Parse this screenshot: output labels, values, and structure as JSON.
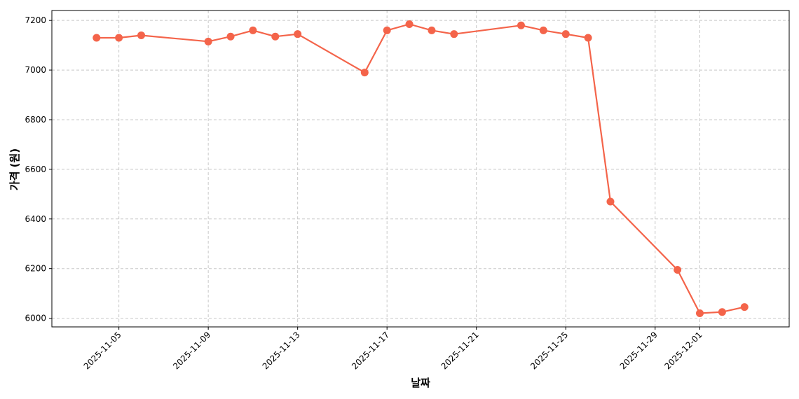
{
  "chart_data": {
    "type": "line",
    "xlabel": "날짜",
    "ylabel": "가격 (원)",
    "xlim": [
      "2025-11-02",
      "2025-12-05"
    ],
    "ylim": [
      5965,
      7240
    ],
    "x_ticks": [
      "2025-11-05",
      "2025-11-09",
      "2025-11-13",
      "2025-11-17",
      "2025-11-21",
      "2025-11-25",
      "2025-11-29",
      "2025-12-01"
    ],
    "y_ticks": [
      6000,
      6200,
      6400,
      6600,
      6800,
      7000,
      7200
    ],
    "grid": true,
    "grid_style": "dashed",
    "series": [
      {
        "color": "#f4644a",
        "marker": "circle",
        "points": [
          {
            "x": "2025-11-04",
            "y": 7130
          },
          {
            "x": "2025-11-05",
            "y": 7130
          },
          {
            "x": "2025-11-06",
            "y": 7140
          },
          {
            "x": "2025-11-09",
            "y": 7115
          },
          {
            "x": "2025-11-10",
            "y": 7135
          },
          {
            "x": "2025-11-11",
            "y": 7160
          },
          {
            "x": "2025-11-12",
            "y": 7135
          },
          {
            "x": "2025-11-13",
            "y": 7145
          },
          {
            "x": "2025-11-16",
            "y": 6990
          },
          {
            "x": "2025-11-17",
            "y": 7160
          },
          {
            "x": "2025-11-18",
            "y": 7185
          },
          {
            "x": "2025-11-19",
            "y": 7160
          },
          {
            "x": "2025-11-20",
            "y": 7145
          },
          {
            "x": "2025-11-23",
            "y": 7180
          },
          {
            "x": "2025-11-24",
            "y": 7160
          },
          {
            "x": "2025-11-25",
            "y": 7145
          },
          {
            "x": "2025-11-26",
            "y": 7130
          },
          {
            "x": "2025-11-27",
            "y": 6470
          },
          {
            "x": "2025-11-30",
            "y": 6195
          },
          {
            "x": "2025-12-01",
            "y": 6020
          },
          {
            "x": "2025-12-02",
            "y": 6025
          },
          {
            "x": "2025-12-03",
            "y": 6045
          }
        ]
      }
    ]
  }
}
